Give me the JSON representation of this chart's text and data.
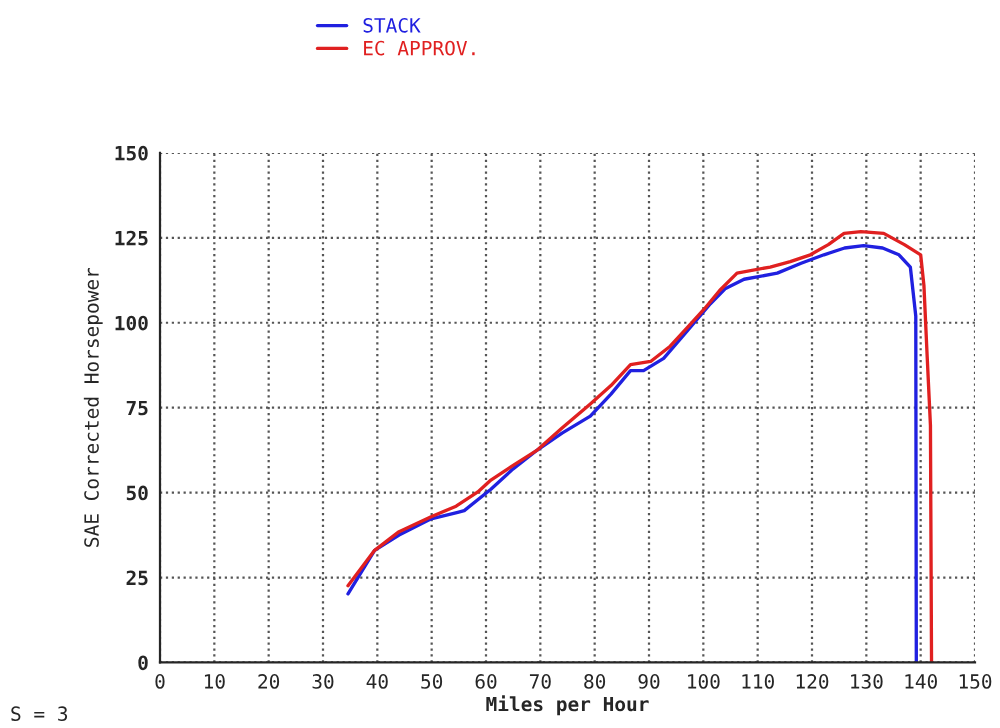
{
  "chart_data": {
    "type": "line",
    "xlabel": "Miles per Hour",
    "ylabel": "SAE Corrected Horsepower",
    "xlim": [
      0,
      150
    ],
    "ylim": [
      0,
      150
    ],
    "xticks": [
      0,
      10,
      20,
      30,
      40,
      50,
      60,
      70,
      80,
      90,
      100,
      110,
      120,
      130,
      140,
      150
    ],
    "yticks": [
      0,
      25,
      50,
      75,
      100,
      125,
      150
    ],
    "grid": true,
    "legend": "top left",
    "marker": "none",
    "line_style": "solid",
    "annotations": [
      "S = 3"
    ],
    "series": [
      {
        "name": "STACK",
        "color": "#2020e0",
        "x": [
          34.6,
          39.5,
          44,
          49.9,
          54.8,
          56,
          60.9,
          65,
          69.5,
          74,
          79.2,
          83,
          86.6,
          89,
          92.7,
          97,
          101.3,
          104,
          107.5,
          113.6,
          118,
          122.2,
          126,
          129.5,
          133,
          136,
          138.1,
          139.1,
          139.2
        ],
        "values": [
          20.2,
          33,
          37.5,
          42.3,
          44.2,
          44.7,
          51,
          57,
          62.6,
          67.5,
          72.5,
          79,
          85.9,
          85.9,
          89.5,
          97.5,
          105.6,
          110,
          112.8,
          114.6,
          117.5,
          120,
          122,
          122.7,
          122,
          120,
          116.4,
          102,
          0
        ]
      },
      {
        "name": "EC APPROV.",
        "color": "#e02020",
        "x": [
          34.6,
          39.5,
          44,
          49.9,
          54.5,
          58.5,
          60.9,
          65,
          69.5,
          74,
          79.2,
          83,
          86.6,
          90.3,
          93.9,
          97,
          100.1,
          103,
          106.2,
          112.3,
          116,
          119.7,
          123,
          125.9,
          129,
          133.2,
          137,
          140,
          140.6,
          141.2,
          141.8,
          142
        ],
        "values": [
          22.6,
          33,
          38.5,
          42.9,
          46,
          50.2,
          53.7,
          58,
          62.6,
          69,
          76.1,
          81.5,
          87.7,
          88.6,
          93.1,
          98.5,
          103.9,
          109.5,
          114.6,
          116.4,
          118,
          120,
          123,
          126.3,
          126.8,
          126.3,
          123,
          120,
          111,
          90,
          69.8,
          0
        ]
      }
    ]
  }
}
